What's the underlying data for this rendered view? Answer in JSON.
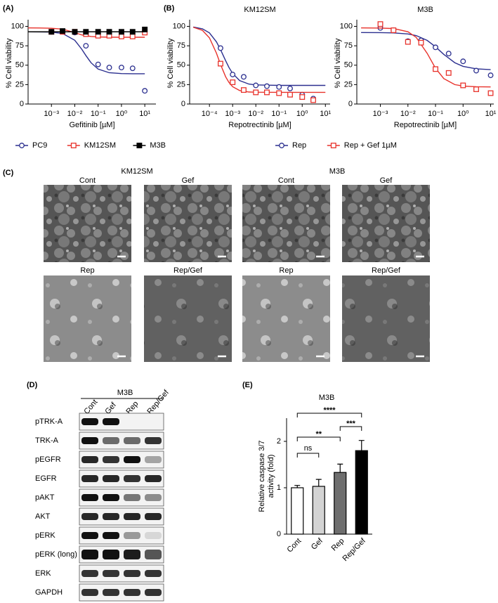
{
  "panel_labels": [
    "(A)",
    "(B)",
    "(C)",
    "(D)",
    "(E)"
  ],
  "chart_data": [
    {
      "type": "dose-response",
      "xlabel": "Gefitinib [µM]",
      "ylabel": "% Cell viability",
      "xscale": "log",
      "xlim": [
        0.0001,
        30
      ],
      "ylim": [
        0,
        105
      ],
      "xticks": [
        {
          "value": 0.001,
          "label": "10⁻³"
        },
        {
          "value": 0.01,
          "label": "10⁻²"
        },
        {
          "value": 0.1,
          "label": "10⁻¹"
        },
        {
          "value": 1,
          "label": "10⁰"
        },
        {
          "value": 10,
          "label": "10¹"
        }
      ],
      "yticks": [
        0,
        25,
        50,
        75,
        100
      ],
      "legend": "bottom",
      "x": [
        0.001,
        0.003,
        0.01,
        0.03,
        0.1,
        0.3,
        1,
        3,
        10
      ],
      "fit_x": [
        0.0001,
        0.0003,
        0.001,
        0.003,
        0.01,
        0.02,
        0.03,
        0.05,
        0.1,
        0.3,
        1,
        3,
        10
      ],
      "series": [
        {
          "name": "PC9",
          "color": "#2b2f8f",
          "marker": "circle-open",
          "values": [
            93,
            93,
            92,
            75,
            51,
            47,
            47,
            46,
            17
          ],
          "fit": [
            93,
            92.9,
            92.6,
            90.8,
            82.1,
            70.5,
            62.4,
            53.1,
            45,
            40.3,
            39.2,
            39,
            39
          ]
        },
        {
          "name": "KM12SM",
          "color": "#e8322b",
          "marker": "square-open",
          "values": [
            93,
            93,
            93,
            90,
            88,
            88,
            87,
            87,
            92
          ],
          "fit": [
            98,
            97.9,
            97.6,
            96.5,
            92,
            89,
            88,
            87,
            86.4,
            86.1,
            86,
            86,
            86
          ]
        },
        {
          "name": "M3B",
          "color": "#000000",
          "marker": "square-filled",
          "values": [
            93,
            94,
            93,
            93,
            93,
            93,
            93,
            93,
            96
          ],
          "fit": [
            93,
            93,
            93,
            93,
            93,
            93,
            93,
            93,
            93,
            93,
            93,
            93,
            93
          ]
        }
      ]
    },
    {
      "type": "dose-response",
      "title": "KM12SM",
      "xlabel": "Repotrectinib [µM]",
      "ylabel": "% Cell viability",
      "xscale": "log",
      "xlim": [
        1.4e-05,
        16
      ],
      "ylim": [
        0,
        105
      ],
      "xticks": [
        {
          "value": 0.0001,
          "label": "10⁻⁴"
        },
        {
          "value": 0.001,
          "label": "10⁻³"
        },
        {
          "value": 0.01,
          "label": "10⁻²"
        },
        {
          "value": 0.1,
          "label": "10⁻¹"
        },
        {
          "value": 1,
          "label": "10⁰"
        },
        {
          "value": 10,
          "label": "10¹"
        }
      ],
      "yticks": [
        0,
        25,
        50,
        75,
        100
      ],
      "legend": "bottom",
      "x": [
        0.0003,
        0.001,
        0.003,
        0.01,
        0.03,
        0.1,
        0.3,
        1,
        3
      ],
      "fit_x": [
        2e-05,
        5e-05,
        0.0001,
        0.0002,
        0.0003,
        0.0005,
        0.0007,
        0.001,
        0.002,
        0.005,
        0.01,
        0.1,
        1,
        10
      ],
      "series": [
        {
          "name": "Rep",
          "color": "#2b2f8f",
          "marker": "circle-open",
          "values": [
            72,
            38,
            35,
            24,
            23,
            22,
            20,
            12,
            7
          ],
          "fit": [
            99.2,
            96.8,
            91.6,
            80.1,
            70.1,
            55.7,
            46.9,
            39.4,
            30.2,
            25.7,
            24.6,
            24,
            24,
            24
          ]
        },
        {
          "name": "Rep + Gef 1µM",
          "color": "#e8322b",
          "marker": "square-open",
          "values": [
            52,
            28,
            18,
            15,
            15,
            14,
            12,
            9,
            5
          ],
          "fit": [
            98.9,
            94.8,
            85.2,
            65.5,
            51,
            35,
            27.6,
            22.3,
            17.4,
            15.5,
            15.2,
            15,
            15,
            15
          ]
        }
      ]
    },
    {
      "type": "dose-response",
      "title": "M3B",
      "xlabel": "Repotrectinib [µM]",
      "ylabel": "% Cell viability",
      "xscale": "log",
      "xlim": [
        0.00014,
        13
      ],
      "ylim": [
        0,
        105
      ],
      "xticks": [
        {
          "value": 0.001,
          "label": "10⁻³"
        },
        {
          "value": 0.01,
          "label": "10⁻²"
        },
        {
          "value": 0.1,
          "label": "10⁻¹"
        },
        {
          "value": 1,
          "label": "10⁰"
        },
        {
          "value": 10,
          "label": "10¹"
        }
      ],
      "yticks": [
        0,
        25,
        50,
        75,
        100
      ],
      "x": [
        0.001,
        0.003,
        0.01,
        0.03,
        0.1,
        0.3,
        1,
        3,
        10
      ],
      "fit_x": [
        0.0002,
        0.001,
        0.003,
        0.01,
        0.02,
        0.05,
        0.1,
        0.2,
        0.5,
        1,
        3,
        10
      ],
      "series": [
        {
          "name": "Rep",
          "color": "#2b2f8f",
          "marker": "circle-open",
          "values": [
            98,
            95,
            81,
            82,
            73,
            65,
            55,
            43,
            37
          ],
          "fit": [
            92,
            91.9,
            91.6,
            90.2,
            88.1,
            81.9,
            73.7,
            63.9,
            53.2,
            48.5,
            45.3,
            44.3
          ]
        },
        {
          "name": "Rep + Gef 1µM",
          "color": "#e8322b",
          "marker": "square-open",
          "values": [
            103,
            95,
            80,
            79,
            45,
            40,
            24,
            19,
            14
          ],
          "fit": [
            98,
            97.8,
            97.2,
            93.1,
            85.8,
            65.2,
            46.1,
            32.7,
            25,
            23.1,
            22.2,
            22
          ]
        }
      ]
    },
    {
      "type": "bar",
      "title": "M3B",
      "ylabel": [
        "Relative caspase 3/7",
        "activity (fold)"
      ],
      "categories": [
        "Cont",
        "Gef",
        "Rep",
        "Rep/Gef"
      ],
      "values": [
        1.0,
        1.03,
        1.33,
        1.8
      ],
      "errors": [
        0.05,
        0.15,
        0.18,
        0.22
      ],
      "colors": [
        "#ffffff",
        "#d3d3d3",
        "#6e6e6e",
        "#000000"
      ],
      "ylim": [
        0,
        2.5
      ],
      "yticks": [
        0,
        1,
        2
      ],
      "significance": [
        {
          "pair": [
            0,
            1
          ],
          "label": "ns"
        },
        {
          "pair": [
            0,
            2
          ],
          "label": "**"
        },
        {
          "pair": [
            2,
            3
          ],
          "label": "***"
        },
        {
          "pair": [
            0,
            3
          ],
          "label": "****"
        }
      ]
    }
  ],
  "microscopy": {
    "groups": [
      {
        "title": "KM12SM",
        "conditions": [
          "Cont",
          "Gef",
          "Rep",
          "Rep/Gef"
        ]
      },
      {
        "title": "M3B",
        "conditions": [
          "Cont",
          "Gef",
          "Rep",
          "Rep/Gef"
        ]
      }
    ]
  },
  "western_blot": {
    "title": "M3B",
    "lanes": [
      "Cont",
      "Gef",
      "Rep",
      "Rep/Gef"
    ],
    "rows": [
      "pTRK-A",
      "TRK-A",
      "pEGFR",
      "EGFR",
      "pAKT",
      "AKT",
      "pERK",
      "pERK (long)",
      "ERK",
      "GAPDH"
    ]
  }
}
